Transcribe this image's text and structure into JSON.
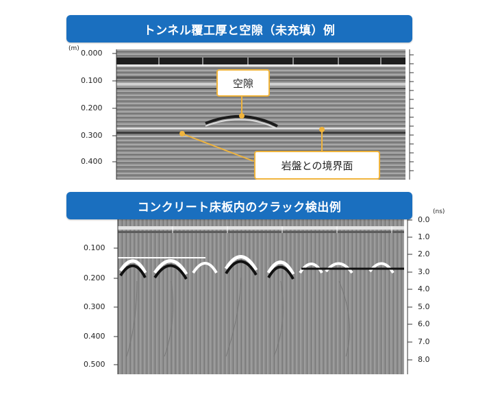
{
  "top_panel": {
    "title": "トンネル覆工厚と空隙（未充填）例",
    "y_unit": "(m)",
    "y_ticks": [
      "0.000",
      "0.100",
      "0.200",
      "0.300",
      "0.400"
    ],
    "callout_void": "空隙",
    "callout_boundary": "岩盤との境界面"
  },
  "bottom_panel": {
    "title": "コンクリート床板内のクラック検出例",
    "y_ticks": [
      "0.100",
      "0.200",
      "0.300",
      "0.400",
      "0.500"
    ],
    "right_unit": "(ns)",
    "right_ticks": [
      "0.0",
      "1.0",
      "2.0",
      "3.0",
      "4.0",
      "5.0",
      "6.0",
      "7.0",
      "8.0"
    ]
  },
  "colors": {
    "banner": "#1a6fbf",
    "callout_border": "#f0b43c",
    "callout_line": "#f0b43c"
  }
}
